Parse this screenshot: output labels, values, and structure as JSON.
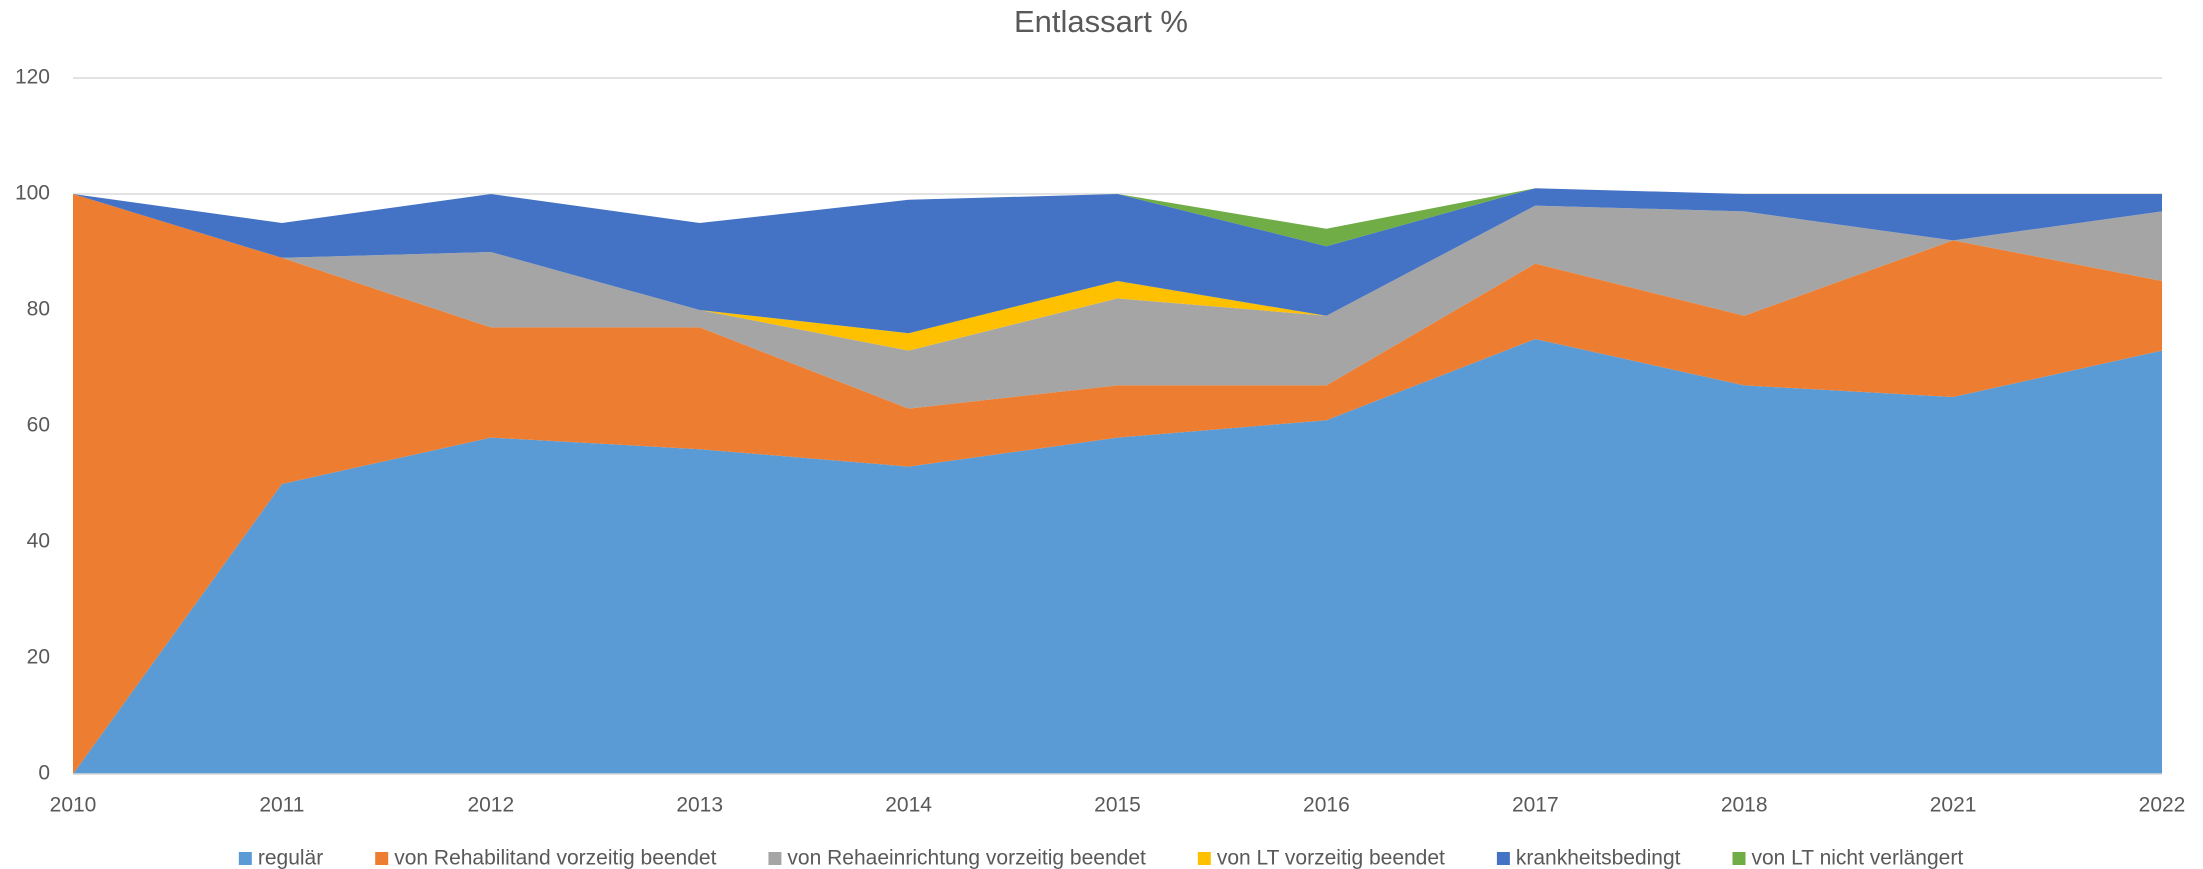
{
  "chart_data": {
    "type": "stacked_area",
    "title": "Entlassart %",
    "categories": [
      "2010",
      "2011",
      "2012",
      "2013",
      "2014",
      "2015",
      "2016",
      "2017",
      "2018",
      "2021",
      "2022"
    ],
    "series": [
      {
        "name": "regulär",
        "color": "#5b9bd5",
        "values": [
          0,
          50,
          58,
          56,
          53,
          58,
          61,
          75,
          67,
          65,
          73
        ]
      },
      {
        "name": "von Rehabilitand vorzeitig beendet",
        "color": "#ed7d31",
        "values": [
          100,
          39,
          19,
          21,
          10,
          9,
          6,
          13,
          12,
          27,
          12
        ]
      },
      {
        "name": "von Rehaeinrichtung vorzeitig beendet",
        "color": "#a5a5a5",
        "values": [
          0,
          0,
          13,
          3,
          10,
          15,
          12,
          10,
          18,
          0,
          12
        ]
      },
      {
        "name": "von LT vorzeitig beendet",
        "color": "#ffc000",
        "values": [
          0,
          0,
          0,
          0,
          3,
          3,
          0,
          0,
          0,
          0,
          0
        ]
      },
      {
        "name": "krankheitsbedingt",
        "color": "#4472c4",
        "values": [
          0,
          6,
          10,
          15,
          23,
          15,
          12,
          3,
          3,
          8,
          3
        ]
      },
      {
        "name": "von LT nicht verlängert",
        "color": "#70ad47",
        "values": [
          0,
          0,
          0,
          0,
          0,
          0,
          3,
          0,
          0,
          0,
          0
        ]
      }
    ],
    "ylim": [
      0,
      120
    ],
    "yticks": [
      0,
      20,
      40,
      60,
      80,
      100,
      120
    ],
    "grid": true,
    "legend": "bottom"
  }
}
